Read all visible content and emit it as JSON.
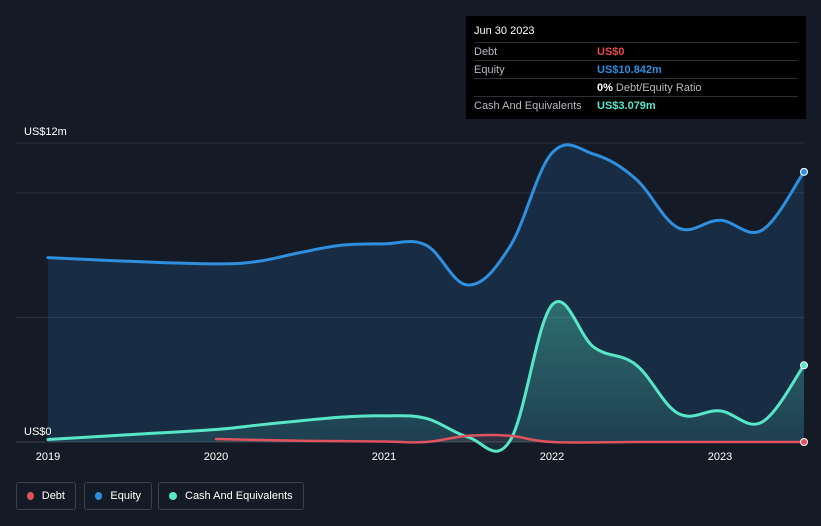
{
  "chart_data": {
    "type": "area",
    "y_axis": {
      "top_label": "US$12m",
      "bottom_label": "US$0",
      "ylim": [
        0,
        12
      ]
    },
    "x_axis": {
      "ticks": [
        "2019",
        "2020",
        "2021",
        "2022",
        "2023"
      ],
      "xlim": [
        2019.0,
        2023.5
      ]
    },
    "series": [
      {
        "name": "Equity",
        "color": "#2e8fdf",
        "points": [
          [
            2019.0,
            7.4
          ],
          [
            2019.5,
            7.25
          ],
          [
            2020.0,
            7.15
          ],
          [
            2020.25,
            7.25
          ],
          [
            2020.5,
            7.6
          ],
          [
            2020.75,
            7.9
          ],
          [
            2021.0,
            7.95
          ],
          [
            2021.25,
            7.9
          ],
          [
            2021.5,
            6.3
          ],
          [
            2021.75,
            7.85
          ],
          [
            2022.0,
            11.6
          ],
          [
            2022.25,
            11.55
          ],
          [
            2022.5,
            10.55
          ],
          [
            2022.75,
            8.6
          ],
          [
            2023.0,
            8.9
          ],
          [
            2023.25,
            8.5
          ],
          [
            2023.5,
            10.842
          ]
        ]
      },
      {
        "name": "Cash And Equivalents",
        "color": "#58e6c9",
        "points": [
          [
            2019.0,
            0.1
          ],
          [
            2019.5,
            0.3
          ],
          [
            2020.0,
            0.5
          ],
          [
            2020.25,
            0.68
          ],
          [
            2020.5,
            0.85
          ],
          [
            2020.75,
            1.0
          ],
          [
            2021.0,
            1.05
          ],
          [
            2021.25,
            0.95
          ],
          [
            2021.5,
            0.2
          ],
          [
            2021.75,
            0.05
          ],
          [
            2022.0,
            5.5
          ],
          [
            2022.25,
            3.8
          ],
          [
            2022.5,
            3.1
          ],
          [
            2022.75,
            1.15
          ],
          [
            2023.0,
            1.25
          ],
          [
            2023.25,
            0.8
          ],
          [
            2023.5,
            3.079
          ]
        ]
      },
      {
        "name": "Debt",
        "color": "#e0525d",
        "points": [
          [
            2020.0,
            0.12
          ],
          [
            2020.5,
            0.05
          ],
          [
            2021.0,
            0.02
          ],
          [
            2021.25,
            0.0
          ],
          [
            2021.5,
            0.25
          ],
          [
            2021.75,
            0.25
          ],
          [
            2022.0,
            0.0
          ],
          [
            2022.5,
            0.0
          ],
          [
            2023.0,
            0.0
          ],
          [
            2023.5,
            0.0
          ]
        ]
      }
    ],
    "tooltip": {
      "date": "Jun 30 2023",
      "rows": [
        {
          "label": "Debt",
          "value": "US$0",
          "color": "#e8484e"
        },
        {
          "label": "Equity",
          "value": "US$10.842m",
          "color": "#2e8fdf"
        },
        {
          "label": "",
          "ratio_value": "0%",
          "ratio_label": "Debt/Equity Ratio"
        },
        {
          "label": "Cash And Equivalents",
          "value": "US$3.079m",
          "color": "#58e6c9"
        }
      ]
    },
    "legend": [
      {
        "label": "Debt",
        "color": "#e0525d"
      },
      {
        "label": "Equity",
        "color": "#2e8fdf"
      },
      {
        "label": "Cash And Equivalents",
        "color": "#58e6c9"
      }
    ]
  }
}
